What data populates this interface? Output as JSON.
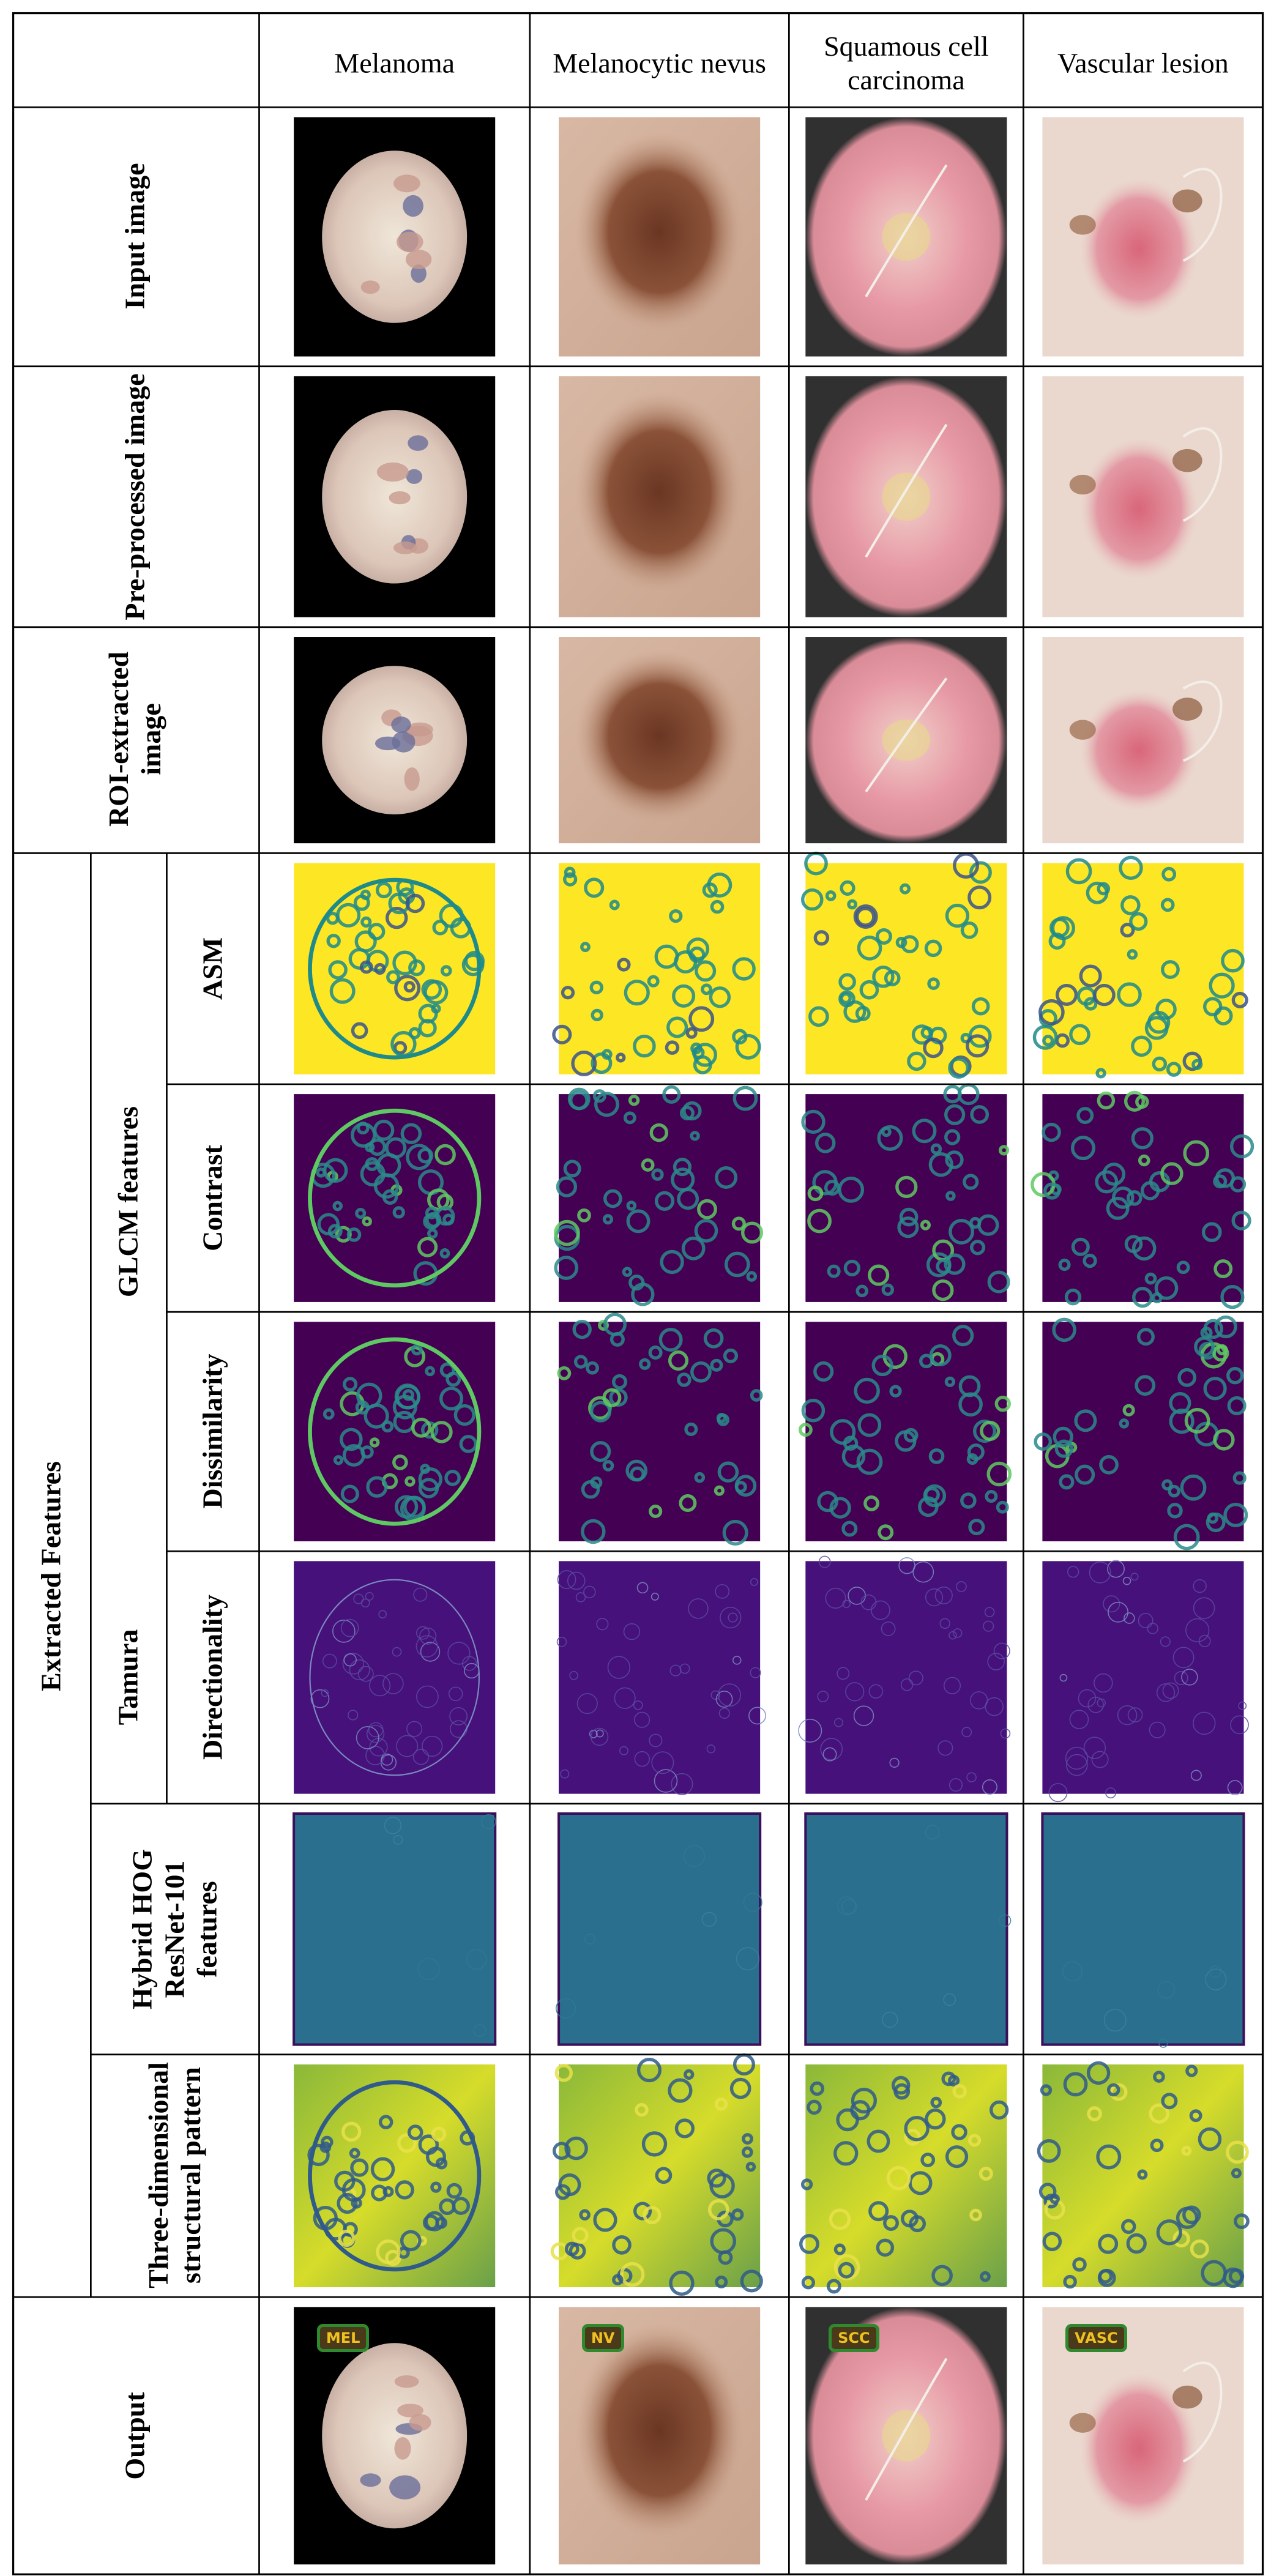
{
  "header": {
    "columns": [
      "Melanoma",
      "Melanocytic nevus",
      "Squamous cell carcinoma",
      "Vascular lesion"
    ]
  },
  "rows": {
    "input": "Input image",
    "preprocessed": "Pre-processed image",
    "roi": "ROI-extracted image",
    "extracted": "Extracted Features",
    "glcm": "GLCM features",
    "asm": "ASM",
    "contrast": "Contrast",
    "dissimilarity": "Dissimilarity",
    "tamura": "Tamura",
    "directionality": "Directionality",
    "hybrid": "Hybrid HOG ResNet-101 features",
    "structural": "Three-dimensional structural pattern",
    "output": "Output"
  },
  "output_labels": [
    "MEL",
    "NV",
    "SCC",
    "VASC"
  ]
}
